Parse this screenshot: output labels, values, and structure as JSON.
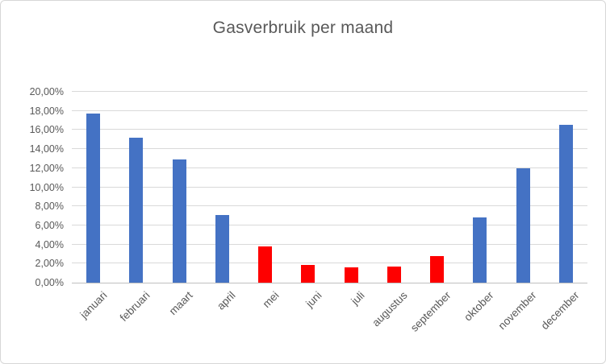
{
  "window": {
    "background": "#ffffff",
    "border_color": "#d7d7d7"
  },
  "chart_data": {
    "type": "bar",
    "title": "Gasverbruik per maand",
    "categories": [
      "januari",
      "februari",
      "maart",
      "april",
      "mei",
      "juni",
      "juli",
      "augustus",
      "september",
      "oktober",
      "november",
      "december"
    ],
    "values": [
      17.7,
      15.2,
      12.9,
      7.1,
      3.8,
      1.9,
      1.6,
      1.7,
      2.8,
      6.8,
      12.0,
      16.5
    ],
    "bar_colors": [
      "#4472c4",
      "#4472c4",
      "#4472c4",
      "#4472c4",
      "#fe0000",
      "#fe0000",
      "#fe0000",
      "#fe0000",
      "#fe0000",
      "#4472c4",
      "#4472c4",
      "#4472c4"
    ],
    "xlabel": "",
    "ylabel": "",
    "ylim": [
      0,
      20
    ],
    "ytick_step": 2,
    "ytick_labels": [
      "0,00%",
      "2,00%",
      "4,00%",
      "6,00%",
      "8,00%",
      "10,00%",
      "12,00%",
      "14,00%",
      "16,00%",
      "18,00%",
      "20,00%"
    ],
    "grid": true,
    "legend": "none",
    "colors": {
      "grid": "#d9d9d9",
      "axis": "#bfbfbf",
      "text": "#595959",
      "blue_series": "#4472c4",
      "red_series": "#fe0000"
    }
  }
}
